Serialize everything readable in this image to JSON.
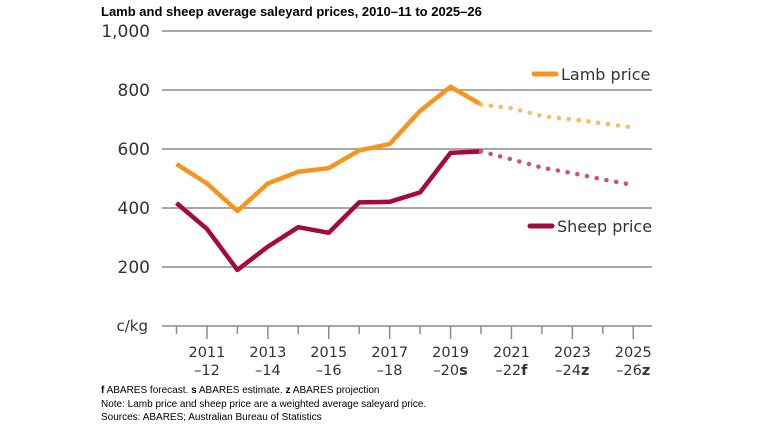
{
  "chart_data": {
    "type": "line",
    "title": "Lamb and sheep average saleyard prices, 2010–11 to 2025–26",
    "ylabel": "c/kg",
    "xlabel": "",
    "ylim": [
      0,
      1000
    ],
    "yticks": [
      200,
      400,
      600,
      800,
      1000
    ],
    "ytick_labels": [
      "200",
      "400",
      "600",
      "800",
      "1,000"
    ],
    "grid": true,
    "x": [
      "2010–11",
      "2011–12",
      "2012–13",
      "2013–14",
      "2014–15",
      "2015–16",
      "2016–17",
      "2017–18",
      "2018–19",
      "2019–20",
      "2020–21",
      "2021–22",
      "2022–23",
      "2023–24",
      "2024–25",
      "2025–26"
    ],
    "xtick_labels": [
      {
        "index": 1,
        "line1": "2011",
        "line2": "–12",
        "suffix": ""
      },
      {
        "index": 3,
        "line1": "2013",
        "line2": "–14",
        "suffix": ""
      },
      {
        "index": 5,
        "line1": "2015",
        "line2": "–16",
        "suffix": ""
      },
      {
        "index": 7,
        "line1": "2017",
        "line2": "–18",
        "suffix": ""
      },
      {
        "index": 9,
        "line1": "2019",
        "line2": "–20",
        "suffix": "s"
      },
      {
        "index": 11,
        "line1": "2021",
        "line2": "–22",
        "suffix": "f"
      },
      {
        "index": 13,
        "line1": "2023",
        "line2": "–24",
        "suffix": "z"
      },
      {
        "index": 15,
        "line1": "2025",
        "line2": "–26",
        "suffix": "z"
      }
    ],
    "projection_start_index": 10,
    "series": [
      {
        "name": "Lamb price",
        "color": "#F7941D",
        "projection_color": "#FBB867",
        "values": [
          549,
          483,
          390,
          483,
          523,
          535,
          595,
          617,
          729,
          811,
          751,
          738,
          712,
          700,
          687,
          673
        ]
      },
      {
        "name": "Sheep price",
        "color": "#A6093D",
        "projection_color": "#C8566F",
        "values": [
          417,
          329,
          190,
          269,
          335,
          316,
          419,
          421,
          453,
          587,
          592,
          565,
          537,
          518,
          497,
          478
        ]
      }
    ],
    "legend": [
      {
        "label": "Lamb price",
        "color": "#F7941D",
        "placement": "upper-right"
      },
      {
        "label": "Sheep price",
        "color": "#A6093D",
        "placement": "middle-right"
      }
    ]
  },
  "notes": {
    "line1_parts": [
      {
        "text": "f",
        "bold": true
      },
      {
        "text": " ABARES forecast. ",
        "bold": false
      },
      {
        "text": "s",
        "bold": true
      },
      {
        "text": " ABARES estimate. ",
        "bold": false
      },
      {
        "text": "z",
        "bold": true
      },
      {
        "text": " ABARES projection",
        "bold": false
      }
    ],
    "line2": "Note: Lamb price and sheep price are a weighted average saleyard price.",
    "line3": "Sources: ABARES; Australian Bureau of Statistics"
  }
}
